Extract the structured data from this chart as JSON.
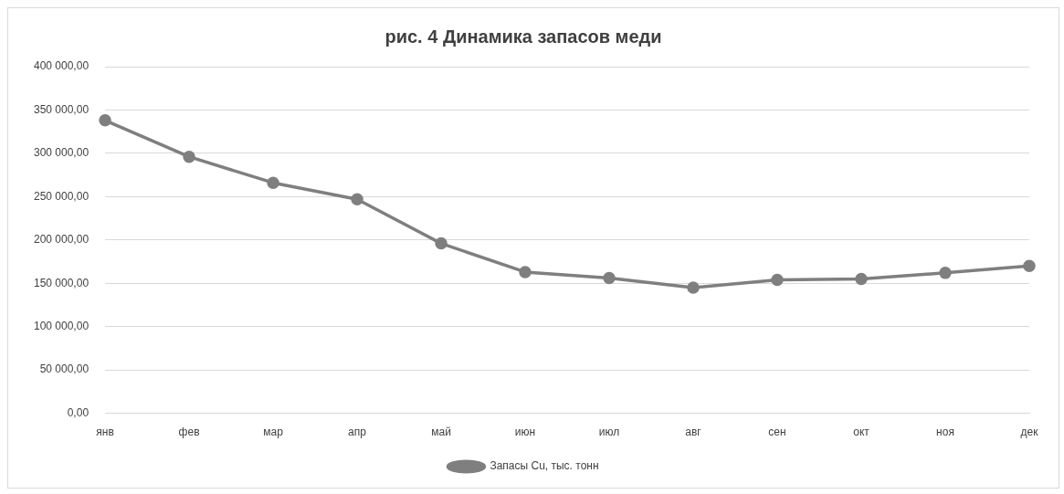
{
  "chart_data": {
    "type": "line",
    "title": "рис. 4 Динамика запасов меди",
    "categories": [
      "янв",
      "фев",
      "мар",
      "апр",
      "май",
      "июн",
      "июл",
      "авг",
      "сен",
      "окт",
      "ноя",
      "дек"
    ],
    "series": [
      {
        "name": "Запасы Cu, тыс. тонн",
        "color": "#7f7f7f",
        "values": [
          338000,
          296000,
          266000,
          247000,
          196000,
          163000,
          156000,
          145000,
          154000,
          155000,
          162000,
          170000
        ]
      }
    ],
    "ylim": [
      0,
      400000
    ],
    "yticks": [
      {
        "value": 0,
        "label": "0,00"
      },
      {
        "value": 50000,
        "label": "50 000,00"
      },
      {
        "value": 100000,
        "label": "100 000,00"
      },
      {
        "value": 150000,
        "label": "150 000,00"
      },
      {
        "value": 200000,
        "label": "200 000,00"
      },
      {
        "value": 250000,
        "label": "250 000,00"
      },
      {
        "value": 300000,
        "label": "300 000,00"
      },
      {
        "value": 350000,
        "label": "350 000,00"
      },
      {
        "value": 400000,
        "label": "400 000,00"
      }
    ],
    "grid": "y",
    "legend": "bottom",
    "marker": "circle",
    "line_style": "solid"
  }
}
